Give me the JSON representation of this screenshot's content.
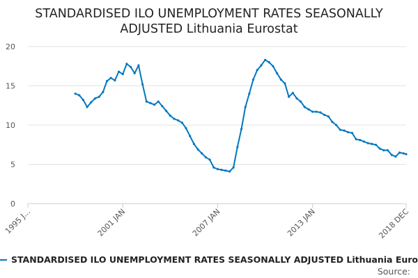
{
  "chart_data": {
    "type": "line",
    "title_lines": [
      "STANDARDISED ILO UNEMPLOYMENT RATES SEASONALLY",
      "ADJUSTED Lithuania Eurostat"
    ],
    "ylim": [
      0,
      20
    ],
    "yticks": [
      0,
      5,
      10,
      15,
      20
    ],
    "ytick_labels": [
      "0",
      "5",
      "10",
      "15",
      "20"
    ],
    "xlim": [
      1995.0,
      2018.917
    ],
    "xticks": [
      1995.0,
      2001.0,
      2007.0,
      2013.0,
      2018.917
    ],
    "xtick_labels": [
      "1995 J...",
      "2001 JAN",
      "2007 JAN",
      "2013 JAN",
      "2018 DEC"
    ],
    "grid": "horizontal",
    "color": "#0077c0",
    "series": [
      {
        "name": "STANDARDISED ILO UNEMPLOYMENT RATES SEASONALLY ADJUSTED Lithuania Eurostat",
        "x": [
          1998.0,
          1998.25,
          1998.5,
          1998.75,
          1999.0,
          1999.25,
          1999.5,
          1999.75,
          2000.0,
          2000.25,
          2000.5,
          2000.75,
          2001.0,
          2001.25,
          2001.5,
          2001.75,
          2002.0,
          2002.25,
          2002.5,
          2002.75,
          2003.0,
          2003.25,
          2003.5,
          2003.75,
          2004.0,
          2004.25,
          2004.5,
          2004.75,
          2005.0,
          2005.25,
          2005.5,
          2005.75,
          2006.0,
          2006.25,
          2006.5,
          2006.75,
          2007.0,
          2007.25,
          2007.5,
          2007.75,
          2008.0,
          2008.25,
          2008.5,
          2008.75,
          2009.0,
          2009.25,
          2009.5,
          2009.75,
          2010.0,
          2010.25,
          2010.5,
          2010.75,
          2011.0,
          2011.25,
          2011.5,
          2011.75,
          2012.0,
          2012.25,
          2012.5,
          2012.75,
          2013.0,
          2013.25,
          2013.5,
          2013.75,
          2014.0,
          2014.25,
          2014.5,
          2014.75,
          2015.0,
          2015.25,
          2015.5,
          2015.75,
          2016.0,
          2016.25,
          2016.5,
          2016.75,
          2017.0,
          2017.25,
          2017.5,
          2017.75,
          2018.0,
          2018.25,
          2018.5,
          2018.75,
          2018.917
        ],
        "values": [
          14.0,
          13.8,
          13.2,
          12.3,
          12.9,
          13.4,
          13.6,
          14.2,
          15.6,
          16.0,
          15.7,
          16.8,
          16.5,
          17.8,
          17.4,
          16.6,
          17.6,
          15.2,
          13.0,
          12.8,
          12.6,
          13.0,
          12.4,
          11.8,
          11.2,
          10.8,
          10.6,
          10.3,
          9.6,
          8.6,
          7.6,
          6.9,
          6.4,
          5.9,
          5.6,
          4.6,
          4.4,
          4.3,
          4.2,
          4.1,
          4.6,
          7.2,
          9.5,
          12.3,
          14.0,
          15.8,
          17.0,
          17.6,
          18.3,
          18.0,
          17.5,
          16.6,
          15.8,
          15.3,
          13.6,
          14.1,
          13.4,
          13.0,
          12.3,
          12.0,
          11.7,
          11.7,
          11.6,
          11.3,
          11.1,
          10.4,
          10.0,
          9.4,
          9.3,
          9.1,
          9.0,
          8.2,
          8.1,
          7.9,
          7.7,
          7.6,
          7.5,
          7.0,
          6.8,
          6.8,
          6.2,
          6.0,
          6.5,
          6.4,
          6.3
        ]
      }
    ],
    "legend": {
      "label": "STANDARDISED ILO UNEMPLOYMENT RATES SEASONALLY ADJUSTED Lithuania Eurostat",
      "position": "bottom-left"
    },
    "source_label": "Source:"
  }
}
